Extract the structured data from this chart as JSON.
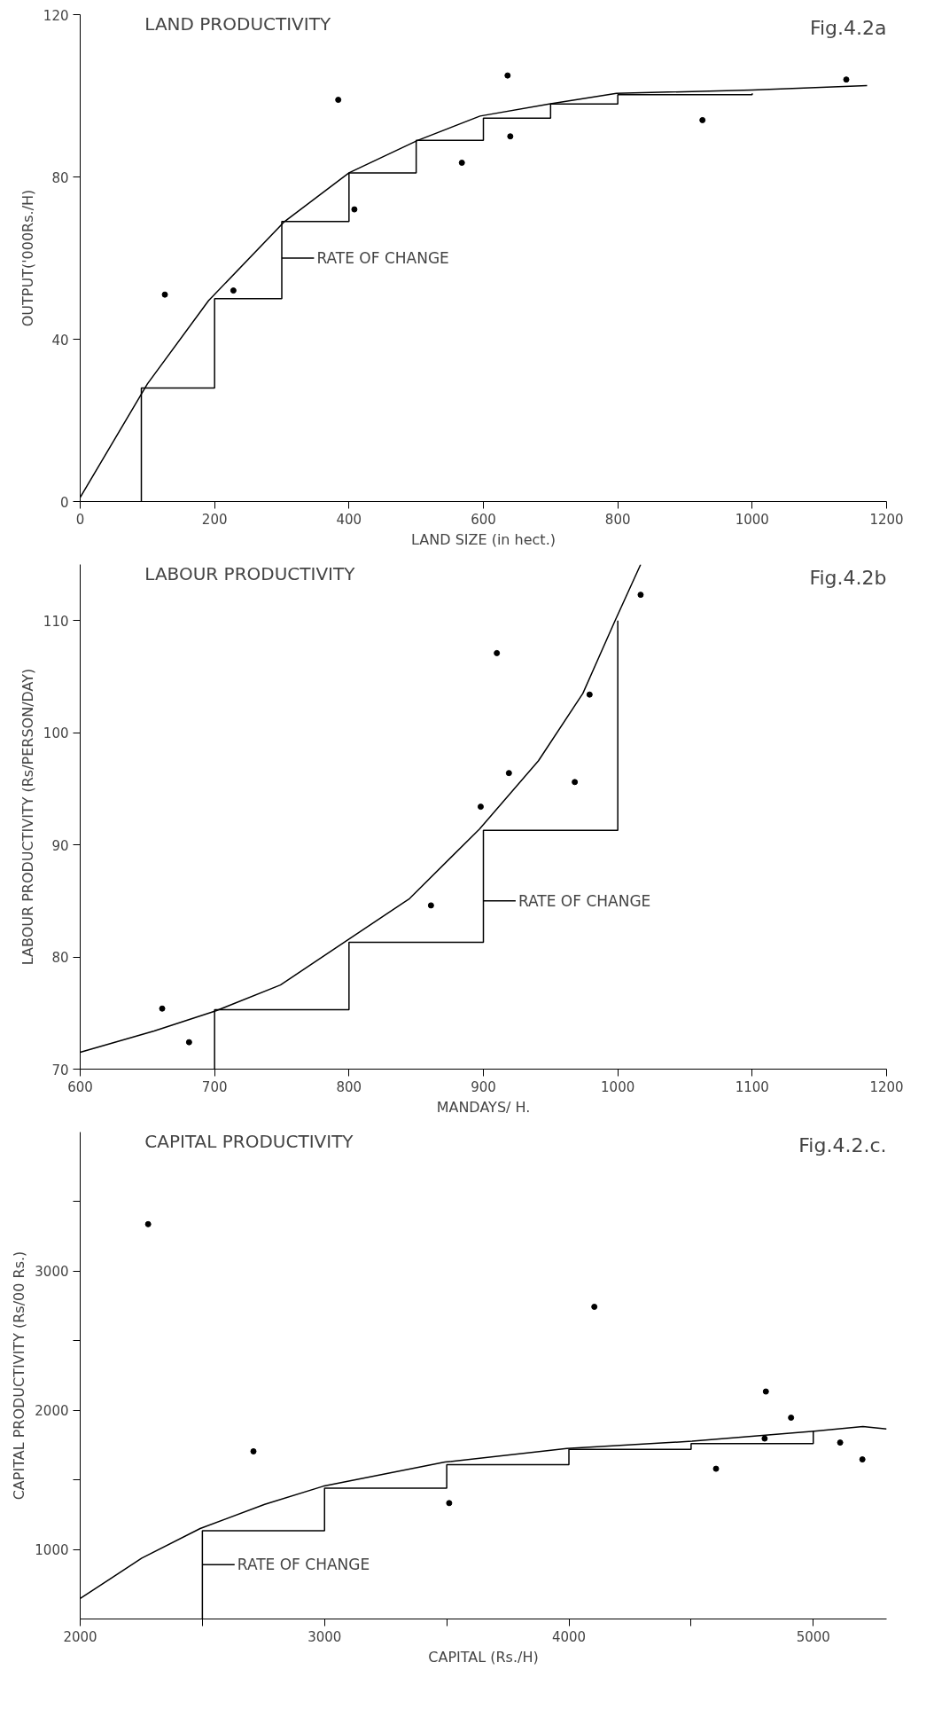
{
  "chart_data": [
    {
      "type": "scatter",
      "title": "LAND PRODUCTIVITY",
      "xlabel": "LAND SIZE (in hect.)",
      "ylabel": "OUTPUT('000Rs./H)",
      "xlim": [
        0,
        1200
      ],
      "ylim": [
        0,
        120
      ],
      "xticks": [
        0,
        200,
        400,
        600,
        800,
        1000,
        1200
      ],
      "yticks": [
        0,
        40,
        80,
        120
      ],
      "grid": false,
      "annotations": [
        "Fig.4.2a",
        {
          "text": "RATE OF CHANGE",
          "x": 300,
          "y": 60
        }
      ],
      "series": [
        {
          "marker": "circle",
          "color": "#000000",
          "x": [
            126,
            228,
            384,
            408,
            568,
            636,
            640,
            926,
            1140
          ],
          "values": [
            51,
            52,
            99,
            72,
            83.5,
            105,
            90,
            94,
            104
          ]
        },
        {
          "type": "line",
          "color": "#000000",
          "x": [
            0,
            100,
            191,
            304,
            400,
            502,
            595,
            698,
            798,
            1000,
            1171
          ],
          "values": [
            1,
            29,
            49.5,
            69,
            81,
            89,
            95,
            98,
            100.6,
            101.4,
            102.5
          ]
        },
        {
          "type": "step",
          "color": "#000000",
          "x": [
            91,
            91,
            200,
            300,
            400,
            500,
            600,
            700,
            800,
            1000
          ],
          "values": [
            0,
            28,
            50,
            69,
            81,
            89,
            94.5,
            98,
            100.3,
            100.6
          ]
        }
      ]
    },
    {
      "type": "scatter",
      "title": "LABOUR PRODUCTIVITY",
      "xlabel": "MANDAYS/ H.",
      "ylabel": "LABOUR PRODUCTIVITY (Rs/PERSON/DAY)",
      "xlim": [
        600,
        1200
      ],
      "ylim": [
        70,
        115
      ],
      "xticks": [
        600,
        700,
        800,
        900,
        1000,
        1100,
        1200
      ],
      "yticks": [
        70,
        80,
        90,
        100,
        110
      ],
      "grid": false,
      "annotations": [
        "Fig.4.2b",
        {
          "text": "RATE OF CHANGE",
          "x": 900,
          "y": 85
        }
      ],
      "series": [
        {
          "marker": "circle",
          "color": "#000000",
          "x": [
            661,
            681,
            861,
            898,
            910,
            919,
            968,
            979,
            1017
          ],
          "values": [
            75.4,
            72.4,
            84.6,
            93.4,
            107.1,
            96.4,
            95.6,
            103.4,
            112.3
          ]
        },
        {
          "type": "line",
          "color": "#000000",
          "x": [
            600,
            655,
            701,
            749,
            800,
            845,
            897,
            941,
            974,
            998,
            1017
          ],
          "values": [
            71.5,
            73.4,
            75.2,
            77.5,
            81.6,
            85.2,
            91.4,
            97.5,
            103.5,
            110,
            115
          ]
        },
        {
          "type": "step",
          "color": "#000000",
          "x": [
            700,
            700,
            800,
            900,
            1000
          ],
          "values": [
            70,
            75.3,
            81.3,
            91.3,
            110
          ]
        }
      ]
    },
    {
      "type": "scatter",
      "title": "CAPITAL PRODUCTIVITY",
      "xlabel": "CAPITAL (Rs./H)",
      "ylabel": "CAPITAL PRODUCTIVITY (Rs/00 Rs.)",
      "xlim": [
        2000,
        5300
      ],
      "ylim": [
        500,
        4000
      ],
      "xticks": [
        2000,
        {
          "value": 2500,
          "label": null
        },
        3000,
        {
          "value": 3500,
          "label": null
        },
        4000,
        {
          "value": 4500,
          "label": null
        },
        5000
      ],
      "yticks": [
        {
          "value": 1500,
          "label": null
        },
        1000,
        2000,
        {
          "value": 2500,
          "label": null
        },
        3000,
        {
          "value": 3500,
          "label": null
        }
      ],
      "grid": false,
      "annotations": [
        "Fig.4.2.c.",
        {
          "text": "RATE OF CHANGE",
          "x": 2500,
          "y": 890
        }
      ],
      "series": [
        {
          "marker": "circle",
          "color": "#000000",
          "x": [
            2278,
            2709,
            3510,
            4104,
            4602,
            4806,
            4801,
            4909,
            5110,
            5201
          ],
          "values": [
            3338,
            1705,
            1333,
            2744,
            1580,
            2135,
            1797,
            1947,
            1768,
            1647
          ]
        },
        {
          "type": "line",
          "color": "#000000",
          "x": [
            2000,
            2252,
            2491,
            2755,
            2994,
            3493,
            3991,
            4504,
            5004,
            5203,
            5300
          ],
          "values": [
            647,
            937,
            1150,
            1324,
            1454,
            1628,
            1725,
            1778,
            1850,
            1884,
            1866
          ]
        },
        {
          "type": "step",
          "color": "#000000",
          "x": [
            2500,
            2500,
            3000,
            3500,
            4000,
            4500,
            5000
          ],
          "values": [
            500,
            1135,
            1440,
            1610,
            1720,
            1760,
            1850
          ]
        }
      ]
    }
  ]
}
